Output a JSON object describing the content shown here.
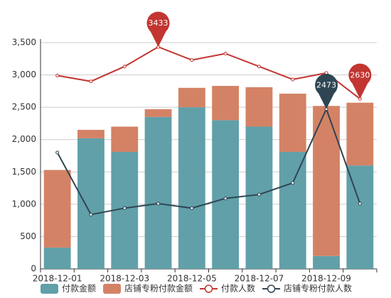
{
  "chart_data": {
    "type": "bar-line",
    "categories": [
      "2018-12-01",
      null,
      "2018-12-03",
      null,
      "2018-12-05",
      null,
      "2018-12-07",
      null,
      "2018-12-09",
      null
    ],
    "series": [
      {
        "name": "付款金额",
        "type": "bar",
        "color": "#61a0a8",
        "values": [
          330,
          2020,
          1810,
          2350,
          2500,
          2300,
          2200,
          1810,
          200,
          1600
        ]
      },
      {
        "name": "店铺专粉付款金额",
        "type": "bar",
        "color": "#d48265",
        "values": [
          1200,
          130,
          390,
          120,
          300,
          530,
          610,
          900,
          2320,
          970
        ]
      },
      {
        "name": "付款人数",
        "type": "line",
        "color": "#c23531",
        "values": [
          2990,
          2900,
          3130,
          3433,
          3230,
          3330,
          3130,
          2930,
          3030,
          2630
        ],
        "pins": [
          "max",
          "min"
        ]
      },
      {
        "name": "店铺专粉付款人数",
        "type": "line",
        "color": "#2f4554",
        "values": [
          1800,
          840,
          940,
          1010,
          940,
          1090,
          1150,
          1330,
          2473,
          1010
        ],
        "pins": [
          "max"
        ]
      }
    ],
    "ylim": [
      0,
      3500
    ],
    "yticks": [
      0,
      {
        "value": 500,
        "label": "500"
      },
      {
        "value": 1000,
        "label": "1,000"
      },
      {
        "value": 1500,
        "label": "1,500"
      },
      {
        "value": 2000,
        "label": "2,000"
      },
      {
        "value": 2500,
        "label": "2,500"
      },
      {
        "value": 3000,
        "label": "3,000"
      },
      {
        "value": 3500,
        "label": "3,500"
      }
    ],
    "grid": true,
    "stacked": true,
    "legend": "bottom"
  }
}
